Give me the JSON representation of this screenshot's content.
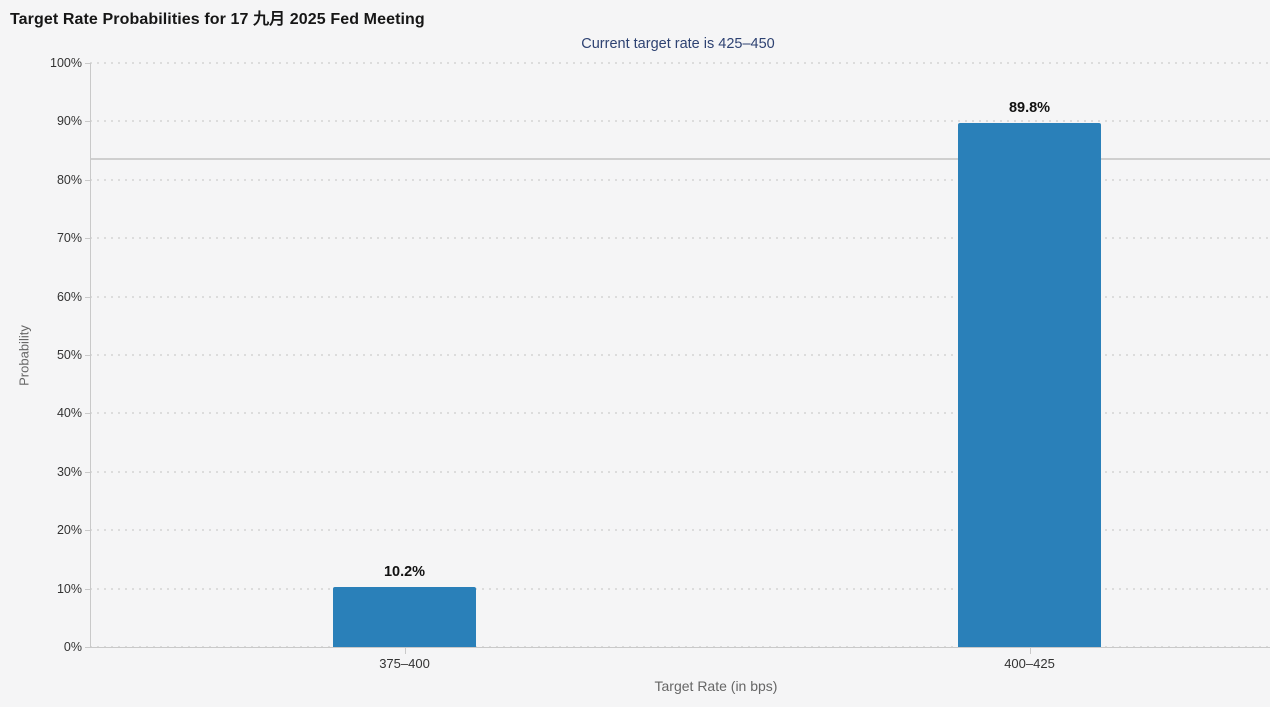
{
  "chart_data": {
    "type": "bar",
    "title": "Target Rate Probabilities for 17 九月 2025 Fed Meeting",
    "subtitle": "Current target rate is 425–450",
    "xlabel": "Target Rate (in bps)",
    "ylabel": "Probability",
    "categories": [
      "375–400",
      "400–425"
    ],
    "values": [
      10.2,
      89.8
    ],
    "data_labels": [
      "10.2%",
      "89.8%"
    ],
    "ylim": [
      0,
      100
    ],
    "y_tick_step": 10,
    "y_tick_suffix": "%",
    "grid": "horizontal-dotted",
    "legend": "none",
    "reference_line_pct": 83.6,
    "colors": {
      "bar": "#2a80b9",
      "background": "#f5f5f6",
      "title": "#161616",
      "subtitle": "#2e4272",
      "tick_label": "#333333",
      "axis_title": "#666666",
      "grid": "#dcdcdc",
      "axis_line": "#c9c9c9",
      "reference_line": "#cfcfcf"
    }
  }
}
